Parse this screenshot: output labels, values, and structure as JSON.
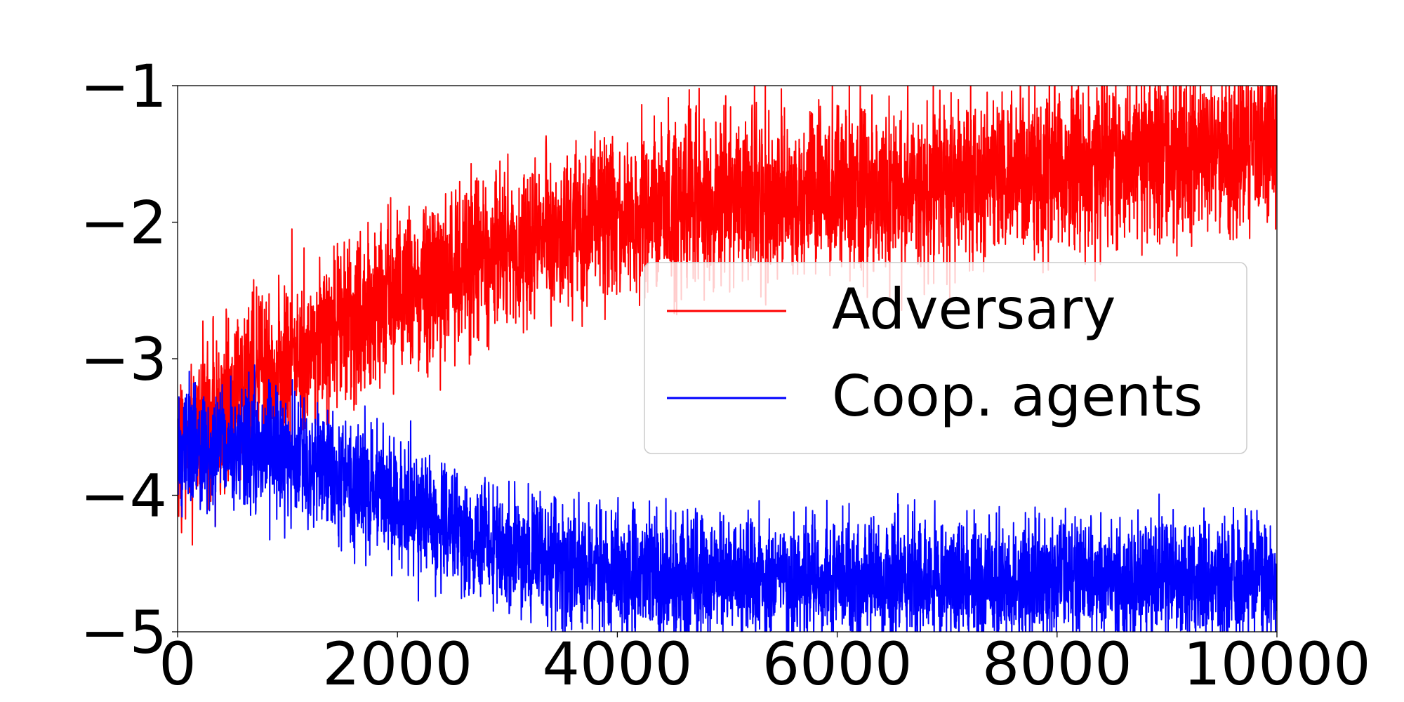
{
  "chart_data": {
    "type": "line",
    "title": "",
    "xlabel": "",
    "ylabel": "",
    "xlim": [
      0,
      10000
    ],
    "ylim": [
      -5,
      -1
    ],
    "x_ticks": [
      0,
      2000,
      4000,
      6000,
      8000,
      10000
    ],
    "x_tick_labels": [
      "0",
      "2000",
      "4000",
      "6000",
      "8000",
      "10000"
    ],
    "y_ticks": [
      -1,
      -2,
      -3,
      -4,
      -5
    ],
    "y_tick_labels": [
      "−1",
      "−2",
      "−3",
      "−4",
      "−5"
    ],
    "grid": false,
    "legend": {
      "placement": "center-right"
    },
    "series": [
      {
        "name": "Adversary",
        "color": "#ff0000",
        "trend_x": [
          0,
          500,
          1000,
          1500,
          2000,
          2500,
          3000,
          3500,
          4000,
          5000,
          6000,
          7000,
          8000,
          9000,
          10000
        ],
        "trend_y": [
          -3.7,
          -3.3,
          -3.0,
          -2.75,
          -2.55,
          -2.35,
          -2.2,
          -2.05,
          -1.95,
          -1.85,
          -1.78,
          -1.7,
          -1.6,
          -1.5,
          -1.4
        ],
        "noise_amplitude": 0.3
      },
      {
        "name": "Coop. agents",
        "color": "#0000ff",
        "trend_x": [
          0,
          500,
          1000,
          1500,
          2000,
          2500,
          3000,
          3500,
          4000,
          5000,
          6000,
          7000,
          8000,
          9000,
          10000
        ],
        "trend_y": [
          -3.65,
          -3.6,
          -3.7,
          -3.85,
          -4.05,
          -4.25,
          -4.4,
          -4.5,
          -4.58,
          -4.62,
          -4.63,
          -4.62,
          -4.62,
          -4.62,
          -4.63
        ],
        "noise_amplitude": 0.22
      }
    ]
  }
}
